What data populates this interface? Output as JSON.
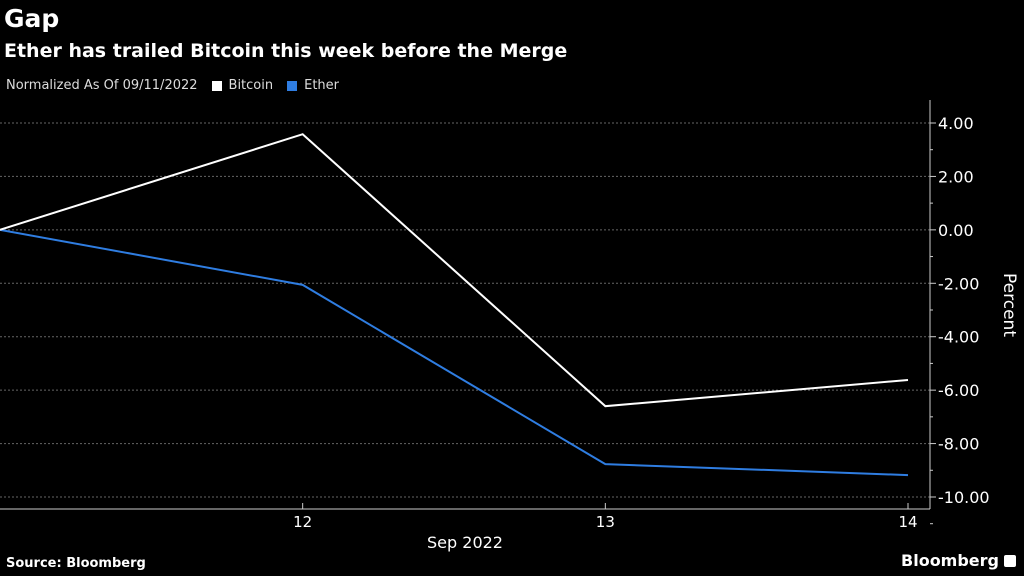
{
  "title": "Gap",
  "subtitle": "Ether has trailed Bitcoin this week before the Merge",
  "legend_prefix": "Normalized As Of 09/11/2022",
  "source": "Source: Bloomberg",
  "brand": "Bloomberg",
  "chart_data": {
    "type": "line",
    "x": [
      11,
      12,
      13,
      14
    ],
    "x_tick_labels": [
      "12",
      "13",
      "14"
    ],
    "x_tick_values": [
      12,
      13,
      14
    ],
    "xlabel": "Sep 2022",
    "ylabel": "Percent",
    "ylim": [
      -10,
      4
    ],
    "y_ticks": [
      4,
      2,
      0,
      -2,
      -4,
      -6,
      -8,
      -10
    ],
    "y_tick_labels": [
      "4.00",
      "2.00",
      "0.00",
      "-2.00",
      "-4.00",
      "-6.00",
      "-8.00",
      "-10.00"
    ],
    "grid": true,
    "legend_position": "top-left",
    "series": [
      {
        "name": "Bitcoin",
        "color": "#ffffff",
        "values": [
          0,
          3.58,
          -6.6,
          -5.62
        ]
      },
      {
        "name": "Ether",
        "color": "#2f7de1",
        "values": [
          0,
          -2.06,
          -8.77,
          -9.18
        ]
      }
    ]
  }
}
